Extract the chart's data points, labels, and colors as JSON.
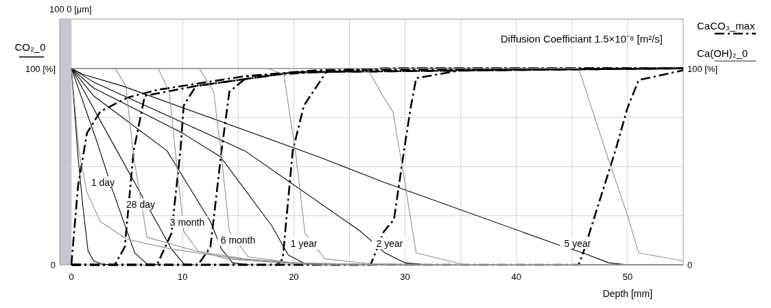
{
  "chart_data": {
    "type": "line",
    "ylabel": "CO₂_0",
    "annotations": [
      "100  0  [μm]",
      "Diffusion Coefficiant  1.5×10⁻⁸ [m²/s]",
      "1 day",
      "28 day",
      "3 month",
      "6 month",
      "1 year",
      "2 year",
      "5 year"
    ],
    "xlabel": "Depth  [mm]",
    "xlim": [
      -1.05,
      55
    ],
    "xticks": [
      0,
      10,
      {
        "value": 15,
        "label": null
      },
      20,
      {
        "value": 25,
        "label": null
      },
      30,
      {
        "value": 35,
        "label": null
      },
      40,
      {
        "value": 45,
        "label": null
      },
      50
    ],
    "ylim": [
      0,
      125
    ],
    "yticks": [
      0,
      {
        "value": 25,
        "label": null
      },
      {
        "value": 50,
        "label": null
      },
      {
        "value": 75,
        "label": null
      },
      {
        "value": 100,
        "label": "100  [%]"
      }
    ],
    "y2lim": [
      0,
      125
    ],
    "y2ticks": [
      0,
      {
        "value": 100,
        "label": "100  [%]"
      }
    ],
    "grid": true,
    "legend": "top right",
    "bands": [
      {
        "axis": "x",
        "from": -1.05,
        "to": 0,
        "color": "#c6c6d0"
      }
    ],
    "series": [
      {
        "color": "#000000",
        "line_style": "solid",
        "x": [
          0,
          0.6,
          1.05,
          1.5,
          2,
          2.8,
          3.5
        ],
        "values": [
          100,
          55,
          29,
          7,
          2,
          0.3,
          0
        ]
      },
      {
        "color": "#000000",
        "line_style": "solid",
        "x": [
          0,
          2.4,
          3.7,
          5.7,
          6.8,
          8
        ],
        "values": [
          100,
          61,
          38,
          6,
          0.5,
          0
        ]
      },
      {
        "color": "#000000",
        "line_style": "solid",
        "x": [
          0,
          4.1,
          9,
          10.1,
          11
        ],
        "values": [
          100,
          58,
          8,
          0.5,
          0
        ]
      },
      {
        "color": "#000000",
        "line_style": "solid",
        "x": [
          0,
          2,
          8.6,
          12.5,
          13.5,
          14.5,
          16
        ],
        "values": [
          100,
          86,
          58,
          22,
          8,
          1,
          0
        ]
      },
      {
        "color": "#000000",
        "line_style": "solid",
        "x": [
          0,
          2,
          10,
          13.4,
          18,
          19.5,
          21,
          23
        ],
        "values": [
          100,
          90,
          67,
          55,
          20,
          5,
          0.5,
          0
        ]
      },
      {
        "color": "#000000",
        "line_style": "solid",
        "x": [
          0,
          2,
          15.6,
          26,
          28.2,
          30,
          32
        ],
        "values": [
          100,
          93,
          58,
          17,
          6,
          1,
          0
        ]
      },
      {
        "color": "#000000",
        "line_style": "solid",
        "x": [
          0,
          1,
          4.6,
          22.2,
          28.1,
          43.6,
          46,
          48.3,
          50
        ],
        "values": [
          100,
          97,
          91,
          55,
          42,
          10.5,
          6,
          1,
          0
        ]
      },
      {
        "name": "CaCO₃_max",
        "color": "#000000",
        "line_style": "dashed",
        "x": [
          0,
          0.6,
          1.4,
          2.6,
          5,
          7.7,
          15.6,
          22,
          30,
          55
        ],
        "values": [
          0,
          40,
          67,
          78,
          85,
          89,
          96,
          99,
          100,
          100
        ]
      },
      {
        "color": "#000000",
        "line_style": "dashed",
        "x": [
          0,
          3.9,
          4.8,
          5.6,
          6.6,
          11.2,
          20,
          55
        ],
        "values": [
          0,
          0,
          9,
          58,
          86,
          91,
          98,
          100
        ]
      },
      {
        "color": "#000000",
        "line_style": "dashed",
        "x": [
          0,
          7.7,
          9,
          9.8,
          10.1,
          11.2,
          20,
          55
        ],
        "values": [
          0,
          0,
          16,
          58,
          81,
          91,
          98,
          100
        ]
      },
      {
        "color": "#000000",
        "line_style": "dashed",
        "x": [
          0,
          11.4,
          12.5,
          13.5,
          14.2,
          15.9,
          25,
          55
        ],
        "values": [
          0,
          0,
          9,
          58,
          88,
          96,
          99,
          100
        ]
      },
      {
        "color": "#000000",
        "line_style": "dashed",
        "x": [
          0,
          18.5,
          19,
          19.9,
          20.9,
          22.9,
          28,
          55
        ],
        "values": [
          0,
          0,
          3,
          58,
          81,
          98,
          100,
          100
        ]
      },
      {
        "color": "#000000",
        "line_style": "dashed",
        "x": [
          0,
          26.9,
          28.1,
          29,
          29.9,
          30.5,
          31,
          35,
          55
        ],
        "values": [
          0,
          0,
          17,
          23,
          58,
          80,
          95,
          99,
          100
        ]
      },
      {
        "color": "#000000",
        "line_style": "dashed",
        "x": [
          0,
          45.6,
          46,
          48.9,
          50,
          51,
          55
        ],
        "values": [
          0,
          0,
          6,
          58,
          80,
          94,
          99
        ]
      },
      {
        "name": "Ca(OH)₂_0",
        "color": "#909090",
        "line_style": "solid",
        "x": [
          0,
          0.7,
          1.4,
          2.6,
          5,
          9,
          15,
          20,
          28,
          55
        ],
        "values": [
          100,
          57,
          37,
          22,
          13,
          8,
          3,
          1,
          0,
          0
        ]
      },
      {
        "color": "#909090",
        "line_style": "solid",
        "x": [
          0,
          3.95,
          4.9,
          5.6,
          6.8,
          11.2,
          15.6,
          22,
          55
        ],
        "values": [
          100,
          100,
          91,
          55,
          14,
          7,
          3,
          0,
          0
        ]
      },
      {
        "color": "#909090",
        "line_style": "solid",
        "x": [
          0,
          7.8,
          8.8,
          9.4,
          10.1,
          11.4,
          14,
          20,
          25,
          55
        ],
        "values": [
          100,
          100,
          88,
          55,
          17,
          7,
          3,
          0.5,
          0,
          0
        ]
      },
      {
        "color": "#909090",
        "line_style": "solid",
        "x": [
          0,
          11.5,
          12.8,
          13.5,
          14.2,
          15.9,
          20,
          28,
          55
        ],
        "values": [
          100,
          100,
          88,
          55,
          17,
          4,
          1,
          0,
          0
        ]
      },
      {
        "color": "#909090",
        "line_style": "solid",
        "x": [
          0,
          17.6,
          19.1,
          20.2,
          21,
          22.8,
          27,
          35,
          55
        ],
        "values": [
          100,
          100,
          97,
          55,
          16,
          3,
          0.5,
          0,
          0
        ]
      },
      {
        "color": "#909090",
        "line_style": "solid",
        "x": [
          0,
          26.6,
          28.1,
          28.9,
          29.6,
          31,
          35.4,
          55
        ],
        "values": [
          100,
          100,
          85,
          78,
          55,
          6,
          0,
          0
        ]
      },
      {
        "color": "#909090",
        "line_style": "solid",
        "x": [
          0,
          45.6,
          48.2,
          50,
          51,
          53.5,
          55
        ],
        "values": [
          100,
          100,
          55,
          25,
          6,
          3.5,
          2
        ]
      }
    ]
  }
}
